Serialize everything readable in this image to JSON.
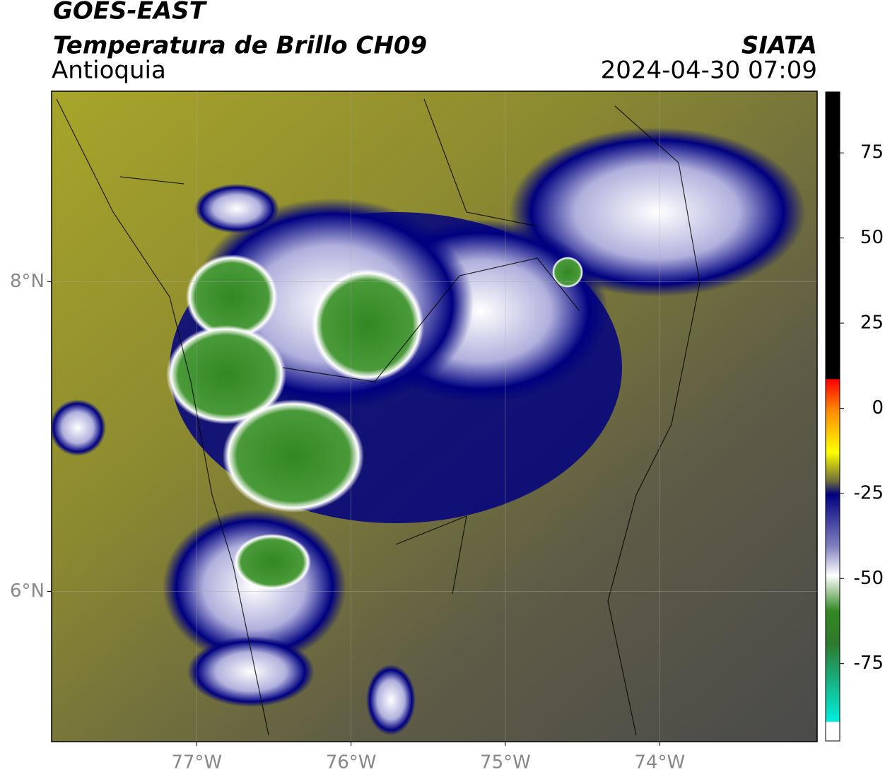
{
  "header": {
    "satellite": "GOES-EAST",
    "product": "Temperatura de Brillo CH09",
    "region": "Antioquia",
    "source": "SIATA",
    "timestamp": "2024-04-30 07:09"
  },
  "map": {
    "xlim": [
      -77.94,
      -72.98
    ],
    "ylim": [
      5.03,
      9.23
    ],
    "xticks": [
      {
        "value": -77,
        "label": "77°W"
      },
      {
        "value": -76,
        "label": "76°W"
      },
      {
        "value": -75,
        "label": "75°W"
      },
      {
        "value": -74,
        "label": "74°W"
      }
    ],
    "yticks": [
      {
        "value": 6,
        "label": "6°N"
      },
      {
        "value": 8,
        "label": "8°N"
      }
    ],
    "grid": true
  },
  "colorbar": {
    "lim": [
      -97.7,
      92.9
    ],
    "ticks": [
      75,
      50,
      25,
      0,
      -25,
      -50,
      -75
    ]
  }
}
